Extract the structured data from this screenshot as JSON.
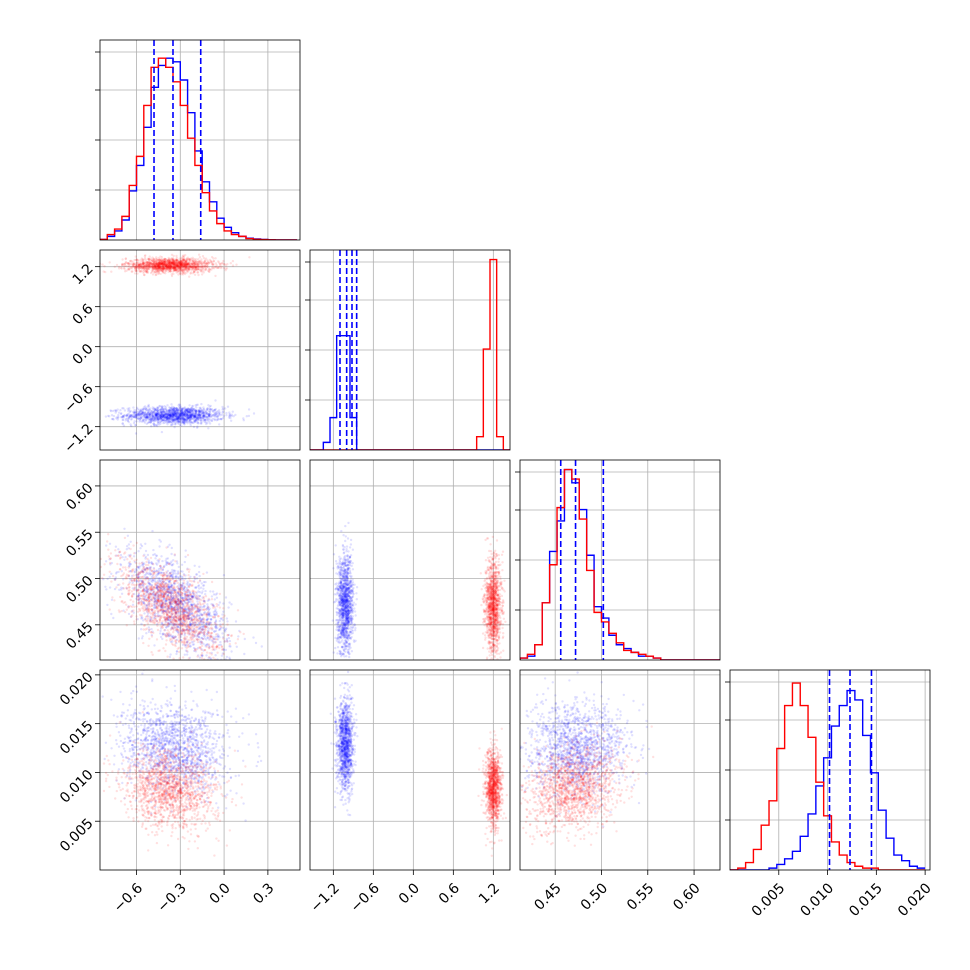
{
  "chart_data": {
    "type": "corner",
    "colors": {
      "series_a": "#0000ff",
      "series_b": "#ff0000"
    },
    "grid": true,
    "parameters": [
      {
        "lim": [
          -0.85,
          0.52
        ],
        "ticks": [
          -0.6,
          -0.3,
          0.0,
          0.3
        ],
        "tick_labels": [
          "−0.6",
          "−0.3",
          "0.0",
          "0.3"
        ]
      },
      {
        "lim": [
          -1.55,
          1.45
        ],
        "ticks": [
          -1.2,
          -0.6,
          0.0,
          0.6,
          1.2
        ],
        "tick_labels": [
          "−1.2",
          "−0.6",
          "0.0",
          "0.6",
          "1.2"
        ]
      },
      {
        "lim": [
          0.412,
          0.628
        ],
        "ticks": [
          0.45,
          0.5,
          0.55,
          0.6
        ],
        "tick_labels": [
          "0.45",
          "0.50",
          "0.55",
          "0.60"
        ]
      },
      {
        "lim": [
          0.0,
          0.0205
        ],
        "ticks": [
          0.005,
          0.01,
          0.015,
          0.02
        ],
        "tick_labels": [
          "0.005",
          "0.010",
          "0.015",
          "0.020"
        ]
      }
    ],
    "histograms": [
      {
        "param": 0,
        "edges": [
          -0.85,
          -0.8,
          -0.75,
          -0.7,
          -0.65,
          -0.6,
          -0.55,
          -0.5,
          -0.45,
          -0.4,
          -0.35,
          -0.3,
          -0.25,
          -0.2,
          -0.15,
          -0.1,
          -0.05,
          0.0,
          0.05,
          0.1,
          0.15,
          0.2,
          0.25,
          0.3,
          0.35,
          0.4,
          0.45,
          0.5
        ],
        "series_a": [
          0.003,
          0.02,
          0.05,
          0.11,
          0.27,
          0.41,
          0.62,
          0.84,
          0.96,
          1.0,
          0.98,
          0.88,
          0.7,
          0.49,
          0.32,
          0.21,
          0.12,
          0.07,
          0.04,
          0.02,
          0.01,
          0.006,
          0.003,
          0.001,
          0,
          0,
          0
        ],
        "series_b": [
          0.003,
          0.03,
          0.06,
          0.13,
          0.3,
          0.46,
          0.74,
          0.95,
          1.0,
          0.95,
          0.87,
          0.74,
          0.56,
          0.41,
          0.26,
          0.16,
          0.09,
          0.05,
          0.03,
          0.02,
          0.008,
          0.004,
          0.002,
          0.001,
          0,
          0,
          0
        ],
        "ymax": 1.1,
        "quantiles": [
          -0.48,
          -0.35,
          -0.16
        ]
      },
      {
        "param": 1,
        "edges": [
          -1.55,
          -1.45,
          -1.35,
          -1.25,
          -1.15,
          -1.05,
          -0.95,
          -0.85,
          -0.75,
          -0.65,
          -0.55,
          -0.45,
          -0.35,
          -0.25,
          -0.15,
          -0.05,
          0.05,
          0.15,
          0.25,
          0.35,
          0.45,
          0.55,
          0.65,
          0.75,
          0.85,
          0.95,
          1.05,
          1.15,
          1.25,
          1.35,
          1.45
        ],
        "series_a": [
          0,
          0,
          0.04,
          0.17,
          0.6,
          0.6,
          0.17,
          0,
          0,
          0,
          0,
          0,
          0,
          0,
          0,
          0,
          0,
          0,
          0,
          0,
          0,
          0,
          0,
          0,
          0,
          0,
          0,
          0,
          0,
          0
        ],
        "series_b": [
          0,
          0,
          0,
          0,
          0,
          0,
          0,
          0,
          0,
          0,
          0,
          0,
          0,
          0,
          0,
          0,
          0,
          0,
          0,
          0,
          0,
          0,
          0,
          0,
          0,
          0.07,
          0.53,
          1.0,
          0.07,
          0
        ],
        "ymax": 1.05,
        "quantiles": [
          -1.1,
          -1.0,
          -0.92,
          -0.85
        ]
      },
      {
        "param": 2,
        "edges": [
          0.412,
          0.42,
          0.428,
          0.436,
          0.444,
          0.452,
          0.46,
          0.468,
          0.476,
          0.484,
          0.492,
          0.5,
          0.508,
          0.516,
          0.524,
          0.532,
          0.54,
          0.548,
          0.556,
          0.564,
          0.572,
          0.58,
          0.588,
          0.596,
          0.604,
          0.612,
          0.62,
          0.628
        ],
        "series_a": [
          0.01,
          0.02,
          0.08,
          0.3,
          0.57,
          0.73,
          1.0,
          0.93,
          0.79,
          0.55,
          0.28,
          0.22,
          0.13,
          0.08,
          0.06,
          0.04,
          0.02,
          0.02,
          0.01,
          0,
          0,
          0,
          0,
          0,
          0,
          0,
          0
        ],
        "series_b": [
          0.01,
          0.03,
          0.08,
          0.3,
          0.5,
          0.8,
          1.0,
          0.95,
          0.74,
          0.47,
          0.25,
          0.2,
          0.14,
          0.09,
          0.05,
          0.04,
          0.03,
          0.02,
          0.01,
          0,
          0,
          0,
          0,
          0,
          0,
          0,
          0
        ],
        "ymax": 1.05,
        "quantiles": [
          0.456,
          0.472,
          0.502
        ]
      },
      {
        "param": 3,
        "edges": [
          0.0,
          0.0008,
          0.0016,
          0.0024,
          0.0032,
          0.004,
          0.0048,
          0.0056,
          0.0064,
          0.0072,
          0.008,
          0.0088,
          0.0096,
          0.0104,
          0.0112,
          0.012,
          0.0128,
          0.0136,
          0.0144,
          0.0152,
          0.016,
          0.0168,
          0.0176,
          0.0184,
          0.0192,
          0.02
        ],
        "series_a": [
          0,
          0,
          0,
          0,
          0,
          0.01,
          0.03,
          0.06,
          0.1,
          0.18,
          0.3,
          0.45,
          0.6,
          0.77,
          0.88,
          0.96,
          0.91,
          0.72,
          0.52,
          0.32,
          0.17,
          0.08,
          0.05,
          0.02,
          0.01
        ],
        "series_b": [
          0,
          0.01,
          0.04,
          0.11,
          0.24,
          0.37,
          0.65,
          0.88,
          1.0,
          0.88,
          0.71,
          0.47,
          0.29,
          0.15,
          0.08,
          0.04,
          0.02,
          0.01,
          0.01,
          0,
          0,
          0,
          0,
          0,
          0
        ],
        "ymax": 1.07,
        "quantiles": [
          0.0102,
          0.0123,
          0.0145
        ]
      }
    ],
    "scatter": [
      {
        "x": 0,
        "y": 1,
        "series_a": {
          "mean": [
            -0.34,
            -1.03
          ],
          "sd": [
            0.17,
            0.065
          ],
          "rho": 0,
          "points": 1400
        },
        "series_b": {
          "mean": [
            -0.37,
            1.22
          ],
          "sd": [
            0.15,
            0.055
          ],
          "rho": 0,
          "points": 1400
        }
      },
      {
        "x": 0,
        "y": 2,
        "series_a": {
          "mean": [
            -0.33,
            0.472
          ],
          "sd": [
            0.18,
            0.027
          ],
          "rho": -0.6,
          "points": 1400
        },
        "series_b": {
          "mean": [
            -0.37,
            0.47
          ],
          "sd": [
            0.17,
            0.025
          ],
          "rho": -0.6,
          "points": 1400
        }
      },
      {
        "x": 0,
        "y": 3,
        "series_a": {
          "mean": [
            -0.34,
            0.0125
          ],
          "sd": [
            0.18,
            0.0023
          ],
          "rho": -0.15,
          "points": 1400
        },
        "series_b": {
          "mean": [
            -0.37,
            0.0082
          ],
          "sd": [
            0.16,
            0.002
          ],
          "rho": -0.15,
          "points": 1400
        }
      },
      {
        "x": 1,
        "y": 2,
        "series_a": {
          "mean": [
            -1.02,
            0.472
          ],
          "sd": [
            0.06,
            0.027
          ],
          "rho": 0,
          "points": 1200
        },
        "series_b": {
          "mean": [
            1.2,
            0.47
          ],
          "sd": [
            0.06,
            0.025
          ],
          "rho": 0,
          "points": 1200
        }
      },
      {
        "x": 1,
        "y": 3,
        "series_a": {
          "mean": [
            -1.02,
            0.0128
          ],
          "sd": [
            0.06,
            0.0023
          ],
          "rho": 0,
          "points": 1200
        },
        "series_b": {
          "mean": [
            1.2,
            0.0083
          ],
          "sd": [
            0.06,
            0.002
          ],
          "rho": 0,
          "points": 1200
        }
      },
      {
        "x": 2,
        "y": 3,
        "series_a": {
          "mean": [
            0.474,
            0.0125
          ],
          "sd": [
            0.027,
            0.0023
          ],
          "rho": 0.1,
          "points": 1400
        },
        "series_b": {
          "mean": [
            0.47,
            0.0084
          ],
          "sd": [
            0.025,
            0.0021
          ],
          "rho": 0.2,
          "points": 1400
        }
      }
    ]
  }
}
